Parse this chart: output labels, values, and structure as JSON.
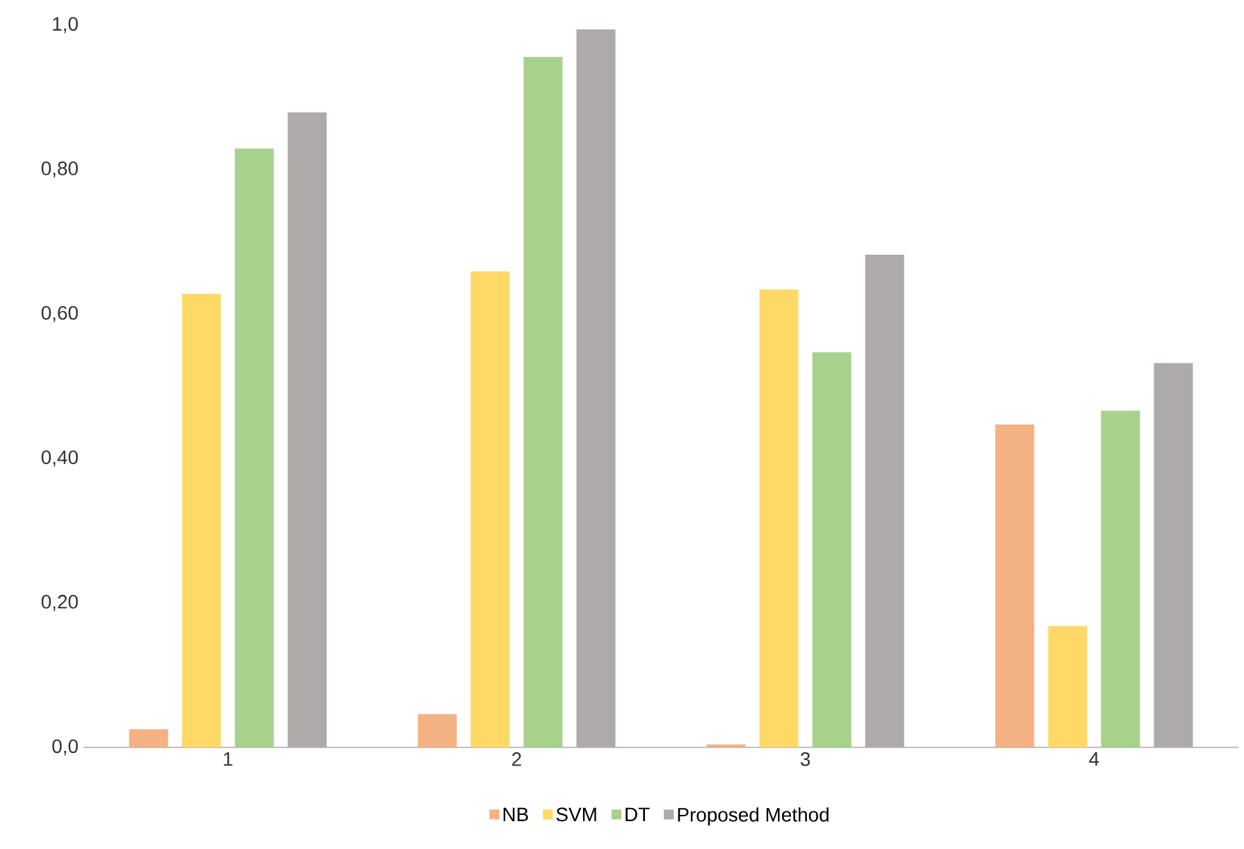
{
  "chart_data": {
    "type": "bar",
    "categories": [
      "1",
      "2",
      "3",
      "4"
    ],
    "series": [
      {
        "name": "NB",
        "color": "#f4b183",
        "values": [
          0.025,
          0.046,
          0.004,
          0.447
        ]
      },
      {
        "name": "SVM",
        "color": "#ffd966",
        "values": [
          0.628,
          0.659,
          0.634,
          0.168
        ]
      },
      {
        "name": "DT",
        "color": "#a9d18e",
        "values": [
          0.829,
          0.956,
          0.547,
          0.466
        ]
      },
      {
        "name": "Proposed Method",
        "color": "#aeaaaa",
        "values": [
          0.879,
          0.994,
          0.682,
          0.532
        ]
      }
    ],
    "ylim": [
      0,
      1
    ],
    "yticks": [
      {
        "value": 0,
        "label": "0,0"
      },
      {
        "value": 0.2,
        "label": "0,20"
      },
      {
        "value": 0.4,
        "label": "0,40"
      },
      {
        "value": 0.6,
        "label": "0,60"
      },
      {
        "value": 0.8,
        "label": "0,80"
      },
      {
        "value": 1,
        "label": "1,0"
      }
    ],
    "grid": false,
    "legend": "bottom"
  }
}
